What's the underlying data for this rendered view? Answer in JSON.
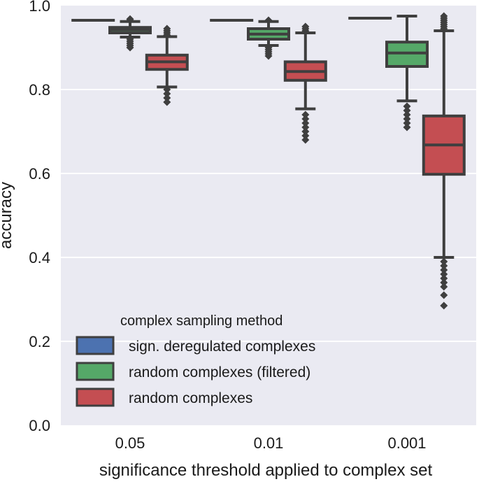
{
  "chart_data": {
    "type": "box",
    "title": "",
    "xlabel": "significance threshold applied to complex set",
    "ylabel": "accuracy",
    "ylim": [
      0.0,
      1.0
    ],
    "yticks": [
      "0.0",
      "0.2",
      "0.4",
      "0.6",
      "0.8",
      "1.0"
    ],
    "ytick_values": [
      0.0,
      0.2,
      0.4,
      0.6,
      0.8,
      1.0
    ],
    "grid": true,
    "categories": [
      "0.05",
      "0.01",
      "0.001"
    ],
    "legend": {
      "title": "complex sampling method",
      "position": "lower-left"
    },
    "series": [
      {
        "name": "sign. deregulated complexes",
        "color": "#4c72b0",
        "boxes": [
          {
            "q1": 0.965,
            "median": 0.965,
            "q3": 0.965,
            "whisker_low": 0.965,
            "whisker_high": 0.965,
            "outliers": []
          },
          {
            "q1": 0.965,
            "median": 0.965,
            "q3": 0.965,
            "whisker_low": 0.965,
            "whisker_high": 0.965,
            "outliers": []
          },
          {
            "q1": 0.97,
            "median": 0.97,
            "q3": 0.97,
            "whisker_low": 0.97,
            "whisker_high": 0.97,
            "outliers": []
          }
        ]
      },
      {
        "name": "random complexes (filtered)",
        "color": "#55a868",
        "boxes": [
          {
            "q1": 0.935,
            "median": 0.942,
            "q3": 0.948,
            "whisker_low": 0.925,
            "whisker_high": 0.962,
            "outliers": [
              0.92,
              0.915,
              0.91,
              0.905,
              0.9,
              0.965,
              0.968
            ]
          },
          {
            "q1": 0.92,
            "median": 0.932,
            "q3": 0.945,
            "whisker_low": 0.905,
            "whisker_high": 0.962,
            "outliers": [
              0.9,
              0.895,
              0.89,
              0.885,
              0.88,
              0.965
            ]
          },
          {
            "q1": 0.855,
            "median": 0.887,
            "q3": 0.913,
            "whisker_low": 0.773,
            "whisker_high": 0.975,
            "outliers": [
              0.76,
              0.75,
              0.74,
              0.73,
              0.72,
              0.71
            ]
          }
        ]
      },
      {
        "name": "random complexes",
        "color": "#c44e52",
        "boxes": [
          {
            "q1": 0.848,
            "median": 0.866,
            "q3": 0.882,
            "whisker_low": 0.806,
            "whisker_high": 0.926,
            "outliers": [
              0.8,
              0.79,
              0.78,
              0.77,
              0.93,
              0.935,
              0.94,
              0.945
            ]
          },
          {
            "q1": 0.822,
            "median": 0.843,
            "q3": 0.866,
            "whisker_low": 0.754,
            "whisker_high": 0.935,
            "outliers": [
              0.74,
              0.73,
              0.72,
              0.71,
              0.7,
              0.69,
              0.68,
              0.94,
              0.945,
              0.95
            ]
          },
          {
            "q1": 0.598,
            "median": 0.668,
            "q3": 0.737,
            "whisker_low": 0.4,
            "whisker_high": 0.94,
            "outliers": [
              0.39,
              0.38,
              0.37,
              0.36,
              0.35,
              0.34,
              0.33,
              0.31,
              0.285,
              0.945,
              0.95,
              0.955,
              0.96,
              0.965,
              0.97,
              0.975
            ]
          }
        ]
      }
    ]
  }
}
